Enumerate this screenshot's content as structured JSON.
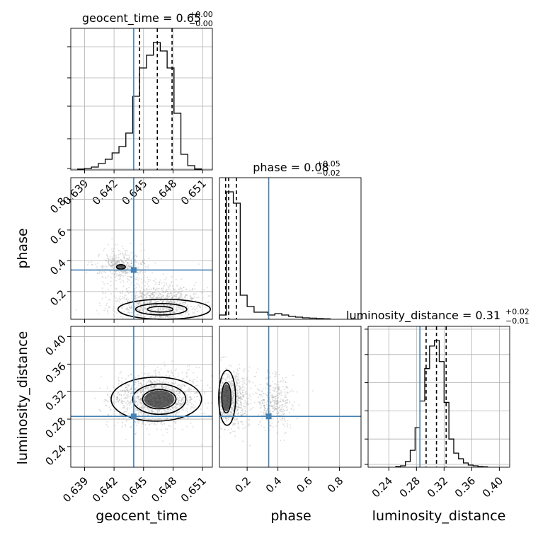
{
  "figure": {
    "truth_color": "#4682b4",
    "hist_color": "#000000",
    "grid_color": "#b0b0b0",
    "scatter_color": "#888888"
  },
  "chart_data": [
    {
      "id": "geocent_time_1d",
      "type": "histogram",
      "title_param": "geocent_time",
      "title_value": "0.65",
      "title_plus": "+0.00",
      "title_minus": "−0.00",
      "xlim": [
        0.6376,
        0.652
      ],
      "x_ticks": [
        0.639,
        0.642,
        0.645,
        0.648,
        0.651
      ],
      "x_tick_labels": [
        "0.639",
        "0.642",
        "0.645",
        "0.648",
        "0.651"
      ],
      "ylim": [
        0,
        1
      ],
      "y_ticks": [
        0.01,
        0.22,
        0.45,
        0.65,
        0.87
      ],
      "bin_edges": [
        0.6383,
        0.639,
        0.6397,
        0.6404,
        0.6411,
        0.6418,
        0.6425,
        0.6432,
        0.6439,
        0.6446,
        0.6453,
        0.646,
        0.6467,
        0.6474,
        0.6481,
        0.6488,
        0.6495,
        0.6502,
        0.6509
      ],
      "counts": [
        0.005,
        0.01,
        0.02,
        0.045,
        0.075,
        0.12,
        0.165,
        0.26,
        0.52,
        0.72,
        0.81,
        0.9,
        0.84,
        0.72,
        0.4,
        0.11,
        0.03,
        0.006
      ],
      "quantiles": [
        0.6446,
        0.6464,
        0.6479
      ],
      "truth": 0.644
    },
    {
      "id": "phase_vs_geocent_time",
      "type": "scatter_contour",
      "xlim": [
        0.6376,
        0.652
      ],
      "ylim": [
        0.02,
        0.94
      ],
      "x_ticks": [
        0.639,
        0.642,
        0.645,
        0.648,
        0.651
      ],
      "y_ticks": [
        0.2,
        0.4,
        0.6,
        0.8
      ],
      "y_tick_labels": [
        "0.2",
        "0.4",
        "0.6",
        "0.8"
      ],
      "y_label": "phase",
      "truth": [
        0.644,
        0.34
      ],
      "clusters": [
        {
          "cx": 0.6465,
          "cy": 0.12,
          "sx": 0.0022,
          "sy": 0.065,
          "n": 1100
        },
        {
          "cx": 0.6428,
          "cy": 0.37,
          "sx": 0.0012,
          "sy": 0.05,
          "n": 420
        }
      ],
      "contours": [
        {
          "cx": 0.6471,
          "cy": 0.085,
          "rx": 0.0047,
          "ry": 0.065
        },
        {
          "cx": 0.6468,
          "cy": 0.085,
          "rx": 0.0026,
          "ry": 0.037
        },
        {
          "cx": 0.6467,
          "cy": 0.085,
          "rx": 0.0013,
          "ry": 0.018
        },
        {
          "cx": 0.6427,
          "cy": 0.36,
          "rx": 0.00045,
          "ry": 0.015
        }
      ]
    },
    {
      "id": "phase_1d",
      "type": "histogram",
      "title_param": "phase",
      "title_value": "0.08",
      "title_plus": "+0.05",
      "title_minus": "−0.02",
      "xlim": [
        0.02,
        0.94
      ],
      "ylim": [
        0,
        1
      ],
      "bin_edges": [
        0.02,
        0.065,
        0.11,
        0.155,
        0.2,
        0.245,
        0.29,
        0.335,
        0.38,
        0.425,
        0.47,
        0.515,
        0.56,
        0.605,
        0.65,
        0.695,
        0.74
      ],
      "counts": [
        0.03,
        0.9,
        0.82,
        0.17,
        0.09,
        0.05,
        0.05,
        0.03,
        0.04,
        0.03,
        0.02,
        0.015,
        0.01,
        0.008,
        0.005,
        0.003
      ],
      "quantiles": [
        0.06,
        0.08,
        0.13
      ],
      "truth": 0.34
    },
    {
      "id": "luminosity_vs_geocent_time",
      "type": "scatter_contour",
      "xlim": [
        0.6376,
        0.652
      ],
      "ylim": [
        0.21,
        0.415
      ],
      "x_ticks": [
        0.639,
        0.642,
        0.645,
        0.648,
        0.651
      ],
      "x_tick_labels": [
        "0.639",
        "0.642",
        "0.645",
        "0.648",
        "0.651"
      ],
      "x_label": "geocent_time",
      "y_ticks": [
        0.24,
        0.28,
        0.32,
        0.36,
        0.4
      ],
      "y_tick_labels": [
        "0.24",
        "0.28",
        "0.32",
        "0.36",
        "0.40"
      ],
      "y_label": "luminosity_distance",
      "truth": [
        0.644,
        0.284
      ],
      "clusters": [
        {
          "cx": 0.6463,
          "cy": 0.309,
          "sx": 0.0022,
          "sy": 0.018,
          "n": 1500
        }
      ],
      "contours": [
        {
          "cx": 0.6463,
          "cy": 0.309,
          "rx": 0.0046,
          "ry": 0.032
        },
        {
          "cx": 0.6466,
          "cy": 0.309,
          "rx": 0.0027,
          "ry": 0.022
        },
        {
          "cx": 0.6466,
          "cy": 0.309,
          "rx": 0.0017,
          "ry": 0.014
        }
      ]
    },
    {
      "id": "luminosity_vs_phase",
      "type": "scatter_contour",
      "xlim": [
        0.02,
        0.94
      ],
      "ylim": [
        0.21,
        0.415
      ],
      "x_ticks": [
        0.2,
        0.4,
        0.6,
        0.8
      ],
      "x_tick_labels": [
        "0.2",
        "0.4",
        "0.6",
        "0.8"
      ],
      "x_label": "phase",
      "truth": [
        0.34,
        0.284
      ],
      "clusters": [
        {
          "cx": 0.085,
          "cy": 0.309,
          "sx": 0.06,
          "sy": 0.02,
          "n": 900
        },
        {
          "cx": 0.38,
          "cy": 0.305,
          "sx": 0.06,
          "sy": 0.02,
          "n": 400
        }
      ],
      "contours": [
        {
          "cx": 0.07,
          "cy": 0.311,
          "rx": 0.055,
          "ry": 0.04
        },
        {
          "cx": 0.065,
          "cy": 0.311,
          "rx": 0.03,
          "ry": 0.022
        }
      ]
    },
    {
      "id": "luminosity_distance_1d",
      "type": "histogram",
      "title_param": "luminosity_distance",
      "title_value": "0.31",
      "title_plus": "+0.02",
      "title_minus": "−0.01",
      "xlim": [
        0.21,
        0.415
      ],
      "x_ticks": [
        0.24,
        0.28,
        0.32,
        0.36,
        0.4
      ],
      "x_tick_labels": [
        "0.24",
        "0.28",
        "0.32",
        "0.36",
        "0.40"
      ],
      "x_label": "luminosity_distance",
      "ylim": [
        0,
        1
      ],
      "y_ticks": [
        0.02,
        0.2,
        0.4,
        0.6,
        0.8,
        0.98
      ],
      "bin_edges": [
        0.25,
        0.257,
        0.264,
        0.271,
        0.278,
        0.285,
        0.292,
        0.299,
        0.306,
        0.313,
        0.32,
        0.327,
        0.334,
        0.341,
        0.348,
        0.355,
        0.362,
        0.369,
        0.376,
        0.383
      ],
      "counts": [
        0.005,
        0.01,
        0.04,
        0.12,
        0.28,
        0.47,
        0.7,
        0.86,
        0.9,
        0.75,
        0.46,
        0.2,
        0.1,
        0.06,
        0.03,
        0.015,
        0.01,
        0.005,
        0.003
      ],
      "quantiles": [
        0.294,
        0.309,
        0.323
      ],
      "truth": 0.285
    }
  ]
}
